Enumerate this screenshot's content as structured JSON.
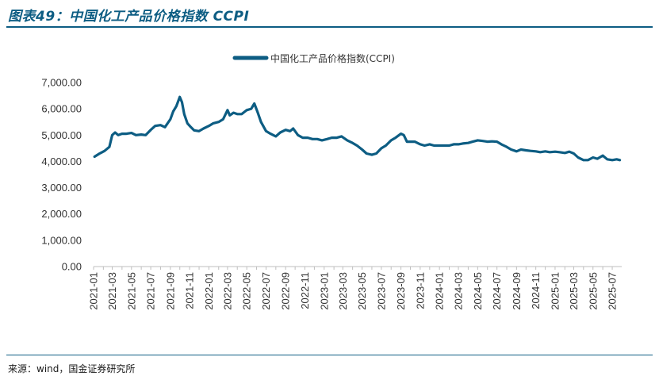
{
  "figure": {
    "title": "图表49：中国化工产品价格指数 CCPI",
    "source": "来源：wind，国金证券研究所"
  },
  "chart_data": {
    "type": "line",
    "legend": "中国化工产品价格指数(CCPI)",
    "legend_position": "top-center",
    "line_color": "#0d5d83",
    "ylim": [
      0,
      7000
    ],
    "y_ticks": [
      "0.00",
      "1,000.00",
      "2,000.00",
      "3,000.00",
      "4,000.00",
      "5,000.00",
      "6,000.00",
      "7,000.00"
    ],
    "x_ticks": [
      "2021-01",
      "2021-03",
      "2021-05",
      "2021-07",
      "2021-09",
      "2021-11",
      "2022-01",
      "2022-03",
      "2022-05",
      "2022-07",
      "2022-09",
      "2022-11",
      "2023-01",
      "2023-03",
      "2023-05",
      "2023-07",
      "2023-09",
      "2023-11",
      "2024-01",
      "2024-03",
      "2024-05",
      "2024-07",
      "2024-09",
      "2024-11",
      "2025-01",
      "2025-03",
      "2025-05",
      "2025-07"
    ],
    "grid": false,
    "series": [
      {
        "name": "中国化工产品价格指数(CCPI)",
        "x": [
          "2021-01-04",
          "2021-01-20",
          "2021-02-05",
          "2021-02-20",
          "2021-03-01",
          "2021-03-10",
          "2021-03-20",
          "2021-04-01",
          "2021-04-15",
          "2021-05-01",
          "2021-05-15",
          "2021-06-01",
          "2021-06-15",
          "2021-07-01",
          "2021-07-15",
          "2021-08-01",
          "2021-08-15",
          "2021-09-01",
          "2021-09-10",
          "2021-09-20",
          "2021-10-01",
          "2021-10-08",
          "2021-10-15",
          "2021-10-25",
          "2021-11-05",
          "2021-11-15",
          "2021-12-01",
          "2021-12-15",
          "2022-01-01",
          "2022-01-15",
          "2022-02-01",
          "2022-02-15",
          "2022-03-01",
          "2022-03-08",
          "2022-03-20",
          "2022-04-01",
          "2022-04-15",
          "2022-05-01",
          "2022-05-15",
          "2022-05-25",
          "2022-06-05",
          "2022-06-15",
          "2022-07-01",
          "2022-07-15",
          "2022-08-01",
          "2022-08-15",
          "2022-09-01",
          "2022-09-15",
          "2022-09-25",
          "2022-10-10",
          "2022-10-25",
          "2022-11-10",
          "2022-11-25",
          "2022-12-10",
          "2022-12-25",
          "2023-01-10",
          "2023-01-25",
          "2023-02-10",
          "2023-02-25",
          "2023-03-15",
          "2023-04-01",
          "2023-04-15",
          "2023-05-01",
          "2023-05-15",
          "2023-06-01",
          "2023-06-15",
          "2023-07-01",
          "2023-07-15",
          "2023-08-01",
          "2023-08-15",
          "2023-09-01",
          "2023-09-10",
          "2023-09-20",
          "2023-10-01",
          "2023-10-15",
          "2023-11-01",
          "2023-11-15",
          "2023-12-01",
          "2023-12-15",
          "2024-01-01",
          "2024-01-15",
          "2024-02-01",
          "2024-02-15",
          "2024-03-01",
          "2024-03-15",
          "2024-04-01",
          "2024-04-15",
          "2024-05-01",
          "2024-05-15",
          "2024-06-01",
          "2024-06-15",
          "2024-07-01",
          "2024-07-15",
          "2024-08-01",
          "2024-08-15",
          "2024-09-01",
          "2024-09-15",
          "2024-10-01",
          "2024-10-15",
          "2024-11-01",
          "2024-11-15",
          "2024-12-01",
          "2024-12-15",
          "2025-01-01",
          "2025-01-15",
          "2025-02-01",
          "2025-02-15",
          "2025-03-01",
          "2025-03-15",
          "2025-04-01",
          "2025-04-15",
          "2025-05-01",
          "2025-05-15",
          "2025-06-01",
          "2025-06-15",
          "2025-07-01",
          "2025-07-15",
          "2025-07-25"
        ],
        "y": [
          4180,
          4300,
          4400,
          4550,
          5000,
          5100,
          5000,
          5050,
          5050,
          5080,
          5000,
          5020,
          5000,
          5200,
          5350,
          5380,
          5300,
          5600,
          5900,
          6100,
          6450,
          6250,
          5800,
          5450,
          5300,
          5180,
          5150,
          5250,
          5350,
          5450,
          5500,
          5600,
          5950,
          5750,
          5850,
          5800,
          5800,
          5950,
          6000,
          6200,
          5850,
          5500,
          5150,
          5050,
          4950,
          5100,
          5200,
          5150,
          5250,
          5000,
          4900,
          4900,
          4850,
          4850,
          4800,
          4850,
          4900,
          4900,
          4950,
          4800,
          4700,
          4600,
          4450,
          4300,
          4250,
          4300,
          4500,
          4600,
          4800,
          4900,
          5050,
          5000,
          4750,
          4750,
          4750,
          4650,
          4600,
          4650,
          4600,
          4600,
          4600,
          4600,
          4650,
          4650,
          4680,
          4700,
          4750,
          4800,
          4780,
          4750,
          4760,
          4750,
          4650,
          4550,
          4450,
          4380,
          4450,
          4420,
          4400,
          4380,
          4350,
          4380,
          4350,
          4370,
          4350,
          4320,
          4370,
          4300,
          4150,
          4050,
          4050,
          4150,
          4100,
          4220,
          4080,
          4050,
          4080,
          4050
        ]
      }
    ]
  }
}
